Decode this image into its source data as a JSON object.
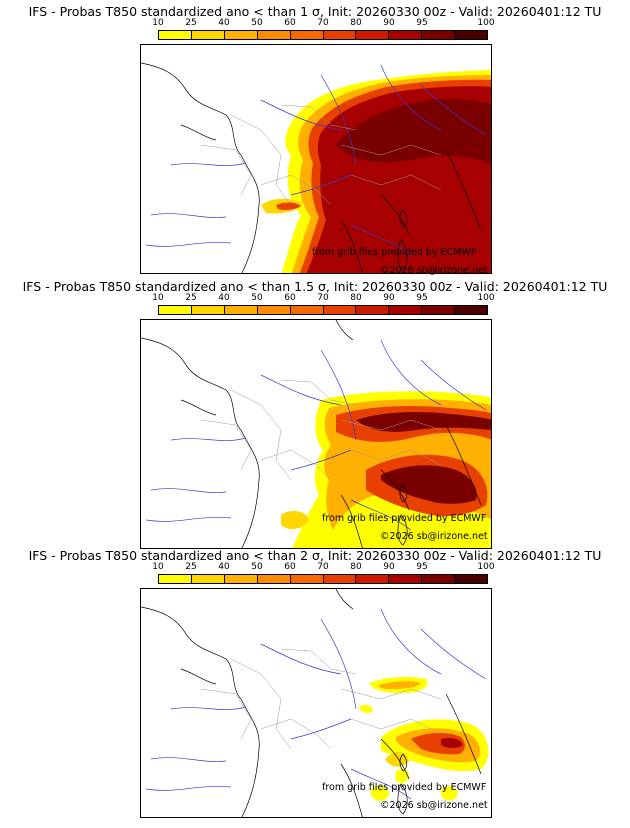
{
  "colors": {
    "bins": [
      "#ffff00",
      "#ffd700",
      "#ffb000",
      "#ff8c00",
      "#f56a00",
      "#e84000",
      "#cc1a00",
      "#a60000",
      "#7a0000",
      "#4a0000"
    ]
  },
  "legend": {
    "ticks": [
      "10",
      "25",
      "40",
      "50",
      "60",
      "70",
      "80",
      "90",
      "95",
      "100"
    ]
  },
  "panels": [
    {
      "title": "IFS - Probas T850  standardized ano < than 1 σ, Init: 20260330 00z - Valid: 20260401:12 TU",
      "credit": "from grib files provided by ECMWF",
      "copyright": "©2026 sb@irizone.net"
    },
    {
      "title": "IFS - Probas T850  standardized ano < than 1.5 σ, Init: 20260330 00z - Valid: 20260401:12 TU",
      "credit": "from grib files provided by ECMWF",
      "copyright": "©2026 sb@irizone.net"
    },
    {
      "title": "IFS - Probas T850  standardized ano < than 2 σ, Init: 20260330 00z - Valid: 20260401:12 TU",
      "credit": "from grib files provided by ECMWF",
      "copyright": "©2026 sb@irizone.net"
    }
  ]
}
